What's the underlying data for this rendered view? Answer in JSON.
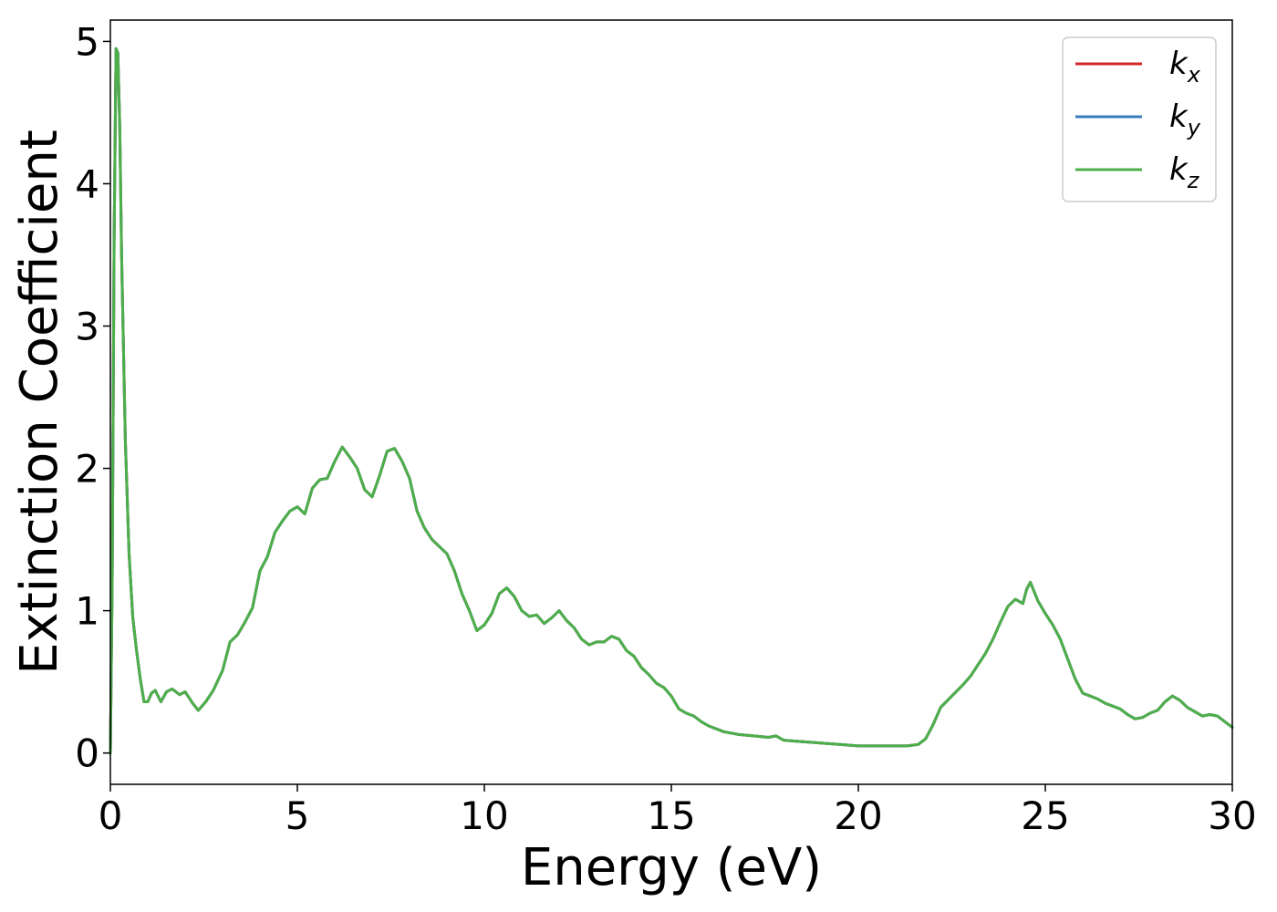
{
  "chart_data": {
    "type": "line",
    "title": "",
    "xlabel": "Energy (eV)",
    "ylabel": "Extinction Coefficient",
    "xlim": [
      0,
      30
    ],
    "ylim": [
      -0.22,
      5.15
    ],
    "xticks": [
      0,
      5,
      10,
      15,
      20,
      25,
      30
    ],
    "yticks": [
      0,
      1,
      2,
      3,
      4,
      5
    ],
    "grid": false,
    "legend_position": "top-right",
    "series": [
      {
        "name": "k",
        "subscript": "x",
        "color": "#d62728"
      },
      {
        "name": "k",
        "subscript": "y",
        "color": "#3a7dbf"
      },
      {
        "name": "k",
        "subscript": "z",
        "color": "#4daf4a"
      }
    ],
    "x": [
      0,
      0.05,
      0.1,
      0.15,
      0.2,
      0.25,
      0.3,
      0.4,
      0.5,
      0.6,
      0.7,
      0.8,
      0.9,
      1.0,
      1.1,
      1.2,
      1.35,
      1.5,
      1.65,
      1.85,
      2.0,
      2.2,
      2.35,
      2.55,
      2.75,
      3.0,
      3.2,
      3.4,
      3.6,
      3.8,
      4.0,
      4.2,
      4.4,
      4.6,
      4.8,
      5.0,
      5.2,
      5.4,
      5.6,
      5.8,
      6.0,
      6.2,
      6.4,
      6.6,
      6.8,
      7.0,
      7.2,
      7.4,
      7.6,
      7.8,
      8.0,
      8.2,
      8.4,
      8.6,
      8.8,
      9.0,
      9.2,
      9.4,
      9.6,
      9.8,
      10.0,
      10.2,
      10.4,
      10.6,
      10.8,
      11.0,
      11.2,
      11.4,
      11.6,
      11.8,
      12.0,
      12.2,
      12.4,
      12.6,
      12.8,
      13.0,
      13.2,
      13.4,
      13.6,
      13.8,
      14.0,
      14.2,
      14.4,
      14.6,
      14.8,
      15.0,
      15.2,
      15.4,
      15.6,
      15.8,
      16.0,
      16.4,
      16.8,
      17.2,
      17.6,
      17.8,
      18.0,
      18.5,
      19.0,
      19.5,
      20.0,
      20.5,
      21.0,
      21.3,
      21.6,
      21.8,
      22.0,
      22.2,
      22.5,
      22.8,
      23.0,
      23.2,
      23.4,
      23.6,
      23.8,
      24.0,
      24.2,
      24.4,
      24.5,
      24.6,
      24.8,
      25.0,
      25.2,
      25.4,
      25.6,
      25.8,
      26.0,
      26.2,
      26.4,
      26.6,
      26.8,
      27.0,
      27.2,
      27.4,
      27.6,
      27.8,
      28.0,
      28.2,
      28.4,
      28.6,
      28.8,
      29.0,
      29.2,
      29.4,
      29.6,
      29.8,
      30.0
    ],
    "values": [
      0.0,
      1.2,
      3.6,
      4.95,
      4.92,
      4.4,
      3.5,
      2.2,
      1.4,
      0.95,
      0.72,
      0.52,
      0.36,
      0.36,
      0.42,
      0.44,
      0.36,
      0.43,
      0.45,
      0.41,
      0.43,
      0.35,
      0.3,
      0.36,
      0.44,
      0.58,
      0.78,
      0.83,
      0.92,
      1.02,
      1.28,
      1.38,
      1.55,
      1.63,
      1.7,
      1.73,
      1.68,
      1.86,
      1.92,
      1.93,
      2.05,
      2.15,
      2.08,
      2.0,
      1.85,
      1.8,
      1.95,
      2.12,
      2.14,
      2.05,
      1.93,
      1.7,
      1.58,
      1.5,
      1.45,
      1.4,
      1.28,
      1.12,
      1.0,
      0.86,
      0.9,
      0.98,
      1.12,
      1.16,
      1.1,
      1.0,
      0.96,
      0.97,
      0.91,
      0.95,
      1.0,
      0.93,
      0.88,
      0.8,
      0.76,
      0.78,
      0.78,
      0.82,
      0.8,
      0.72,
      0.68,
      0.6,
      0.55,
      0.49,
      0.46,
      0.4,
      0.31,
      0.28,
      0.26,
      0.22,
      0.19,
      0.15,
      0.13,
      0.12,
      0.11,
      0.12,
      0.09,
      0.08,
      0.07,
      0.06,
      0.05,
      0.05,
      0.05,
      0.05,
      0.06,
      0.1,
      0.2,
      0.32,
      0.4,
      0.48,
      0.54,
      0.62,
      0.7,
      0.8,
      0.92,
      1.03,
      1.08,
      1.05,
      1.15,
      1.2,
      1.07,
      0.98,
      0.9,
      0.8,
      0.66,
      0.52,
      0.42,
      0.4,
      0.38,
      0.35,
      0.33,
      0.31,
      0.27,
      0.24,
      0.25,
      0.28,
      0.3,
      0.36,
      0.4,
      0.37,
      0.32,
      0.29,
      0.26,
      0.27,
      0.26,
      0.22,
      0.18
    ]
  }
}
